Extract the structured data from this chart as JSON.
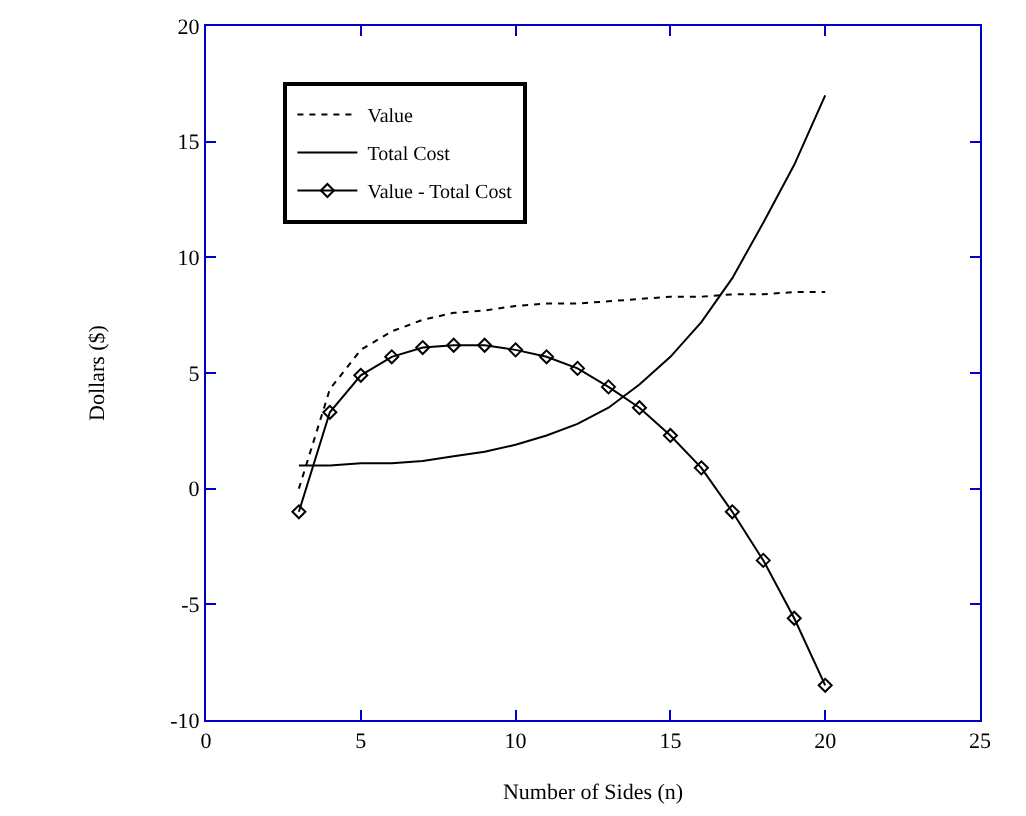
{
  "chart_data": {
    "type": "line",
    "xlabel": "Number of Sides (n)",
    "ylabel": "Dollars ($)",
    "x": [
      3,
      4,
      5,
      6,
      7,
      8,
      9,
      10,
      11,
      12,
      13,
      14,
      15,
      16,
      17,
      18,
      19,
      20
    ],
    "series": [
      {
        "name": "Value",
        "color": "#000000",
        "line_style": "dotted",
        "marker": "none",
        "values": [
          0,
          4.3,
          6.0,
          6.8,
          7.3,
          7.6,
          7.7,
          7.9,
          8.0,
          8.0,
          8.1,
          8.2,
          8.3,
          8.3,
          8.4,
          8.4,
          8.5,
          8.5
        ]
      },
      {
        "name": "Total Cost",
        "color": "#000000",
        "line_style": "solid",
        "marker": "none",
        "values": [
          1.0,
          1.0,
          1.1,
          1.1,
          1.2,
          1.4,
          1.6,
          1.9,
          2.3,
          2.8,
          3.5,
          4.5,
          5.7,
          7.2,
          9.1,
          11.5,
          14.0,
          17.0
        ]
      },
      {
        "name": "Value - Total Cost",
        "color": "#000000",
        "line_style": "solid",
        "marker": "diamond",
        "values": [
          -1,
          3.3,
          4.9,
          5.7,
          6.1,
          6.2,
          6.2,
          6.0,
          5.7,
          5.2,
          4.4,
          3.5,
          2.3,
          0.9,
          -1.0,
          -3.1,
          -5.6,
          -8.5
        ]
      }
    ],
    "xlim": [
      0,
      25
    ],
    "xticks": [
      0,
      5,
      10,
      15,
      20,
      25
    ],
    "ylim": [
      -10,
      20
    ],
    "yticks": [
      -10,
      -5,
      0,
      5,
      10,
      15,
      20
    ],
    "legend": "top left"
  }
}
